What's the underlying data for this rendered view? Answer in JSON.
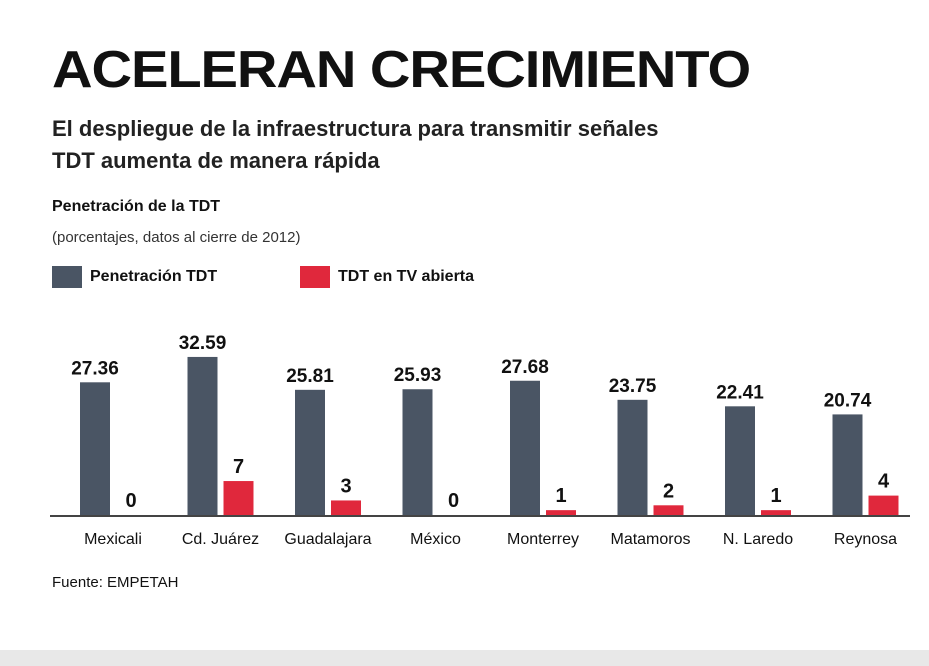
{
  "chart_data": {
    "type": "bar",
    "title": "ACELERAN CRECIMIENTO",
    "subtitle": [
      "El despliegue de la infraestructura para transmitir señales",
      "TDT aumenta de manera rápida"
    ],
    "chart_title": "Penetración de la TDT",
    "chart_note": "(porcentajes, datos al cierre de 2012)",
    "categories": [
      "Mexicali",
      "Cd. Juárez",
      "Guadalajara",
      "México",
      "Monterrey",
      "Matamoros",
      "N. Laredo",
      "Reynosa"
    ],
    "series": [
      {
        "name": "Penetración TDT",
        "color": "#4a5564",
        "values": [
          27.36,
          32.59,
          25.81,
          25.93,
          27.68,
          23.75,
          22.41,
          20.74
        ],
        "labels": [
          "27.36",
          "32.59",
          "25.81",
          "25.93",
          "27.68",
          "23.75",
          "22.41",
          "20.74"
        ]
      },
      {
        "name": "TDT en TV abierta",
        "color": "#e0283c",
        "values": [
          0,
          7,
          3,
          0,
          1,
          2,
          1,
          4
        ],
        "labels": [
          "0",
          "7",
          "3",
          "0",
          "1",
          "2",
          "1",
          "4"
        ]
      }
    ],
    "legend": "top-left",
    "grid": false,
    "source": "Fuente: EMPETAH"
  }
}
